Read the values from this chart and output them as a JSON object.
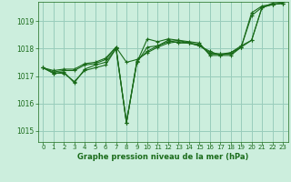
{
  "title": "Graphe pression niveau de la mer (hPa)",
  "background_color": "#cceedd",
  "grid_color": "#99ccbb",
  "line_color": "#1a6b1a",
  "xlim": [
    -0.5,
    23.5
  ],
  "ylim": [
    1014.6,
    1019.7
  ],
  "yticks": [
    1015,
    1016,
    1017,
    1018,
    1019
  ],
  "xticks": [
    0,
    1,
    2,
    3,
    4,
    5,
    6,
    7,
    8,
    9,
    10,
    11,
    12,
    13,
    14,
    15,
    16,
    17,
    18,
    19,
    20,
    21,
    22,
    23
  ],
  "series": [
    [
      1017.3,
      1017.1,
      1017.1,
      1016.8,
      1017.2,
      1017.3,
      1017.4,
      1018.0,
      1015.3,
      1017.5,
      1018.35,
      1018.25,
      1018.35,
      1018.3,
      1018.25,
      1018.2,
      1017.75,
      1017.75,
      1017.75,
      1018.05,
      1019.3,
      1019.55,
      1019.6,
      1019.65
    ],
    [
      1017.3,
      1017.15,
      1017.2,
      1017.2,
      1017.4,
      1017.45,
      1017.6,
      1018.05,
      1017.5,
      1017.6,
      1017.85,
      1018.05,
      1018.2,
      1018.25,
      1018.2,
      1018.1,
      1017.9,
      1017.75,
      1017.85,
      1018.05,
      1018.3,
      1019.5,
      1019.6,
      1019.65
    ],
    [
      1017.3,
      1017.2,
      1017.25,
      1017.25,
      1017.45,
      1017.5,
      1017.65,
      1018.05,
      1015.3,
      1017.55,
      1017.9,
      1018.1,
      1018.25,
      1018.3,
      1018.2,
      1018.1,
      1017.85,
      1017.8,
      1017.85,
      1018.1,
      1018.3,
      1019.5,
      1019.65,
      1019.7
    ],
    [
      1017.3,
      1017.1,
      1017.15,
      1016.75,
      1017.25,
      1017.4,
      1017.5,
      1018.0,
      1015.3,
      1017.5,
      1018.05,
      1018.1,
      1018.3,
      1018.2,
      1018.2,
      1018.15,
      1017.8,
      1017.8,
      1017.8,
      1018.05,
      1019.2,
      1019.5,
      1019.6,
      1019.65
    ]
  ]
}
